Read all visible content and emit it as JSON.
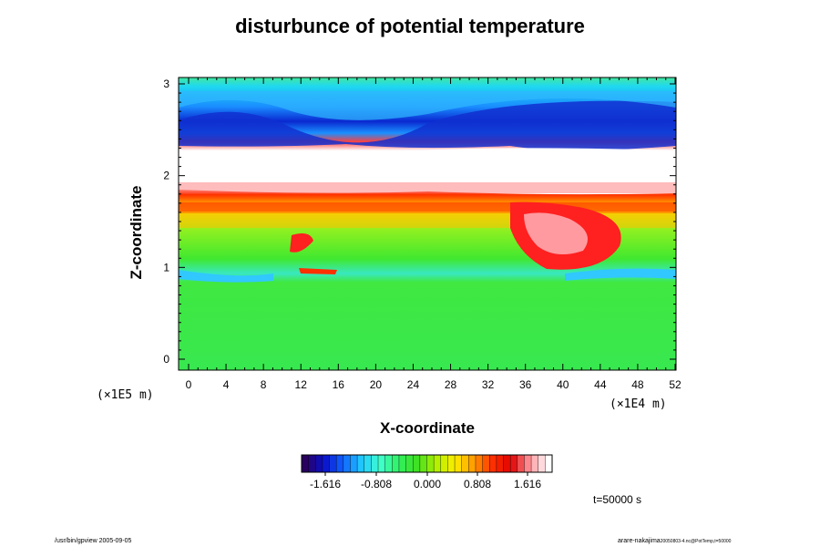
{
  "chart_data": {
    "type": "heatmap",
    "title": "disturbunce of potential temperature",
    "xlabel": "X-coordinate",
    "ylabel": "Z-coordinate",
    "x_unit": "(×1E4 m)",
    "z_unit": "(×1E5 m)",
    "xlim": [
      0,
      52
    ],
    "ylim": [
      0,
      3
    ],
    "x_ticks": [
      "0",
      "4",
      "8",
      "12",
      "16",
      "20",
      "24",
      "28",
      "32",
      "36",
      "40",
      "44",
      "48",
      "52"
    ],
    "y_ticks": [
      "0",
      "1",
      "2",
      "3"
    ],
    "colorbar": {
      "labels": [
        "-1.616",
        "-0.808",
        "0.000",
        "0.808",
        "1.616"
      ],
      "colors": [
        "#2a0060",
        "#0a10c8",
        "#1060ff",
        "#20c8ff",
        "#40ffd0",
        "#30f060",
        "#40e020",
        "#b0f000",
        "#ffee00",
        "#ff9a00",
        "#ff3000",
        "#e00000",
        "#ff9aa0",
        "#ffffff"
      ]
    },
    "time_label": "t=50000 s"
  },
  "footer": {
    "left": "/usr/bin/gpview 2005-09-05",
    "right_main": "arare-nakajima",
    "right_small": "20050803-4.nc@PotTemp,t=50000"
  }
}
